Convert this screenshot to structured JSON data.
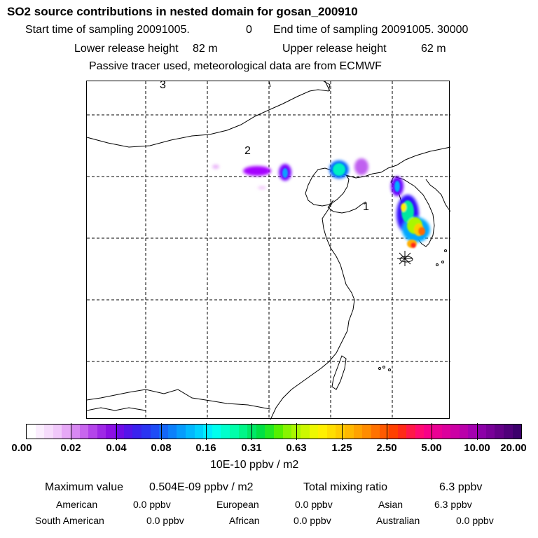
{
  "title": "SO2 source contributions in nested domain for gosan_200910",
  "header": {
    "start_label": "Start time of sampling 20091005.",
    "start_value": "0",
    "end_label": "End time of sampling 20091005. 30000",
    "lower_label": "Lower release height",
    "lower_value": "82 m",
    "upper_label": "Upper release height",
    "upper_value": "62 m",
    "note": "Passive tracer used, meteorological data are from ECMWF"
  },
  "map": {
    "region_labels": [
      "1",
      "2",
      "3"
    ],
    "receptor_marker": "asterisk-marker"
  },
  "colorbar": {
    "tick_labels": [
      "0.00",
      "0.02",
      "0.04",
      "0.08",
      "0.16",
      "0.31",
      "0.63",
      "1.25",
      "2.50",
      "5.00",
      "10.00",
      "20.00"
    ],
    "unit": "10E-10 ppbv / m2",
    "colors": [
      "#ffffff",
      "#fbeefe",
      "#f6dcfc",
      "#f0c8fa",
      "#e6a8f6",
      "#d888f2",
      "#c866ee",
      "#b444ea",
      "#9f28e6",
      "#8c10e3",
      "#6f0ce6",
      "#5414ea",
      "#3a22ee",
      "#2a34f2",
      "#1e4cf6",
      "#1466f8",
      "#0c80fa",
      "#069cfc",
      "#02b8fe",
      "#00d2ff",
      "#00ecff",
      "#00ffee",
      "#00ffcc",
      "#00ffaa",
      "#00f688",
      "#00e866",
      "#00e044",
      "#22e822",
      "#55f000",
      "#88f400",
      "#aaf600",
      "#ccf800",
      "#eef800",
      "#fff000",
      "#ffde00",
      "#ffcc00",
      "#ffb800",
      "#ffa200",
      "#ff8c00",
      "#ff7200",
      "#ff5a00",
      "#ff4000",
      "#ff2a18",
      "#ff1848",
      "#ff0a72",
      "#f80088",
      "#ea0094",
      "#dc009c",
      "#cc00a4",
      "#ba00aa",
      "#a400b0",
      "#8c00a8",
      "#780098",
      "#640088",
      "#50007a",
      "#3c006c"
    ]
  },
  "stats": {
    "max_label": "Maximum value",
    "max_value": "0.504E-09 ppbv / m2",
    "total_label": "Total mixing ratio",
    "total_value": "6.3 ppbv",
    "sources": [
      {
        "name": "American",
        "value": "0.0 ppbv"
      },
      {
        "name": "European",
        "value": "0.0 ppbv"
      },
      {
        "name": "Asian",
        "value": "6.3 ppbv"
      },
      {
        "name": "South American",
        "value": "0.0 ppbv"
      },
      {
        "name": "African",
        "value": "0.0 ppbv"
      },
      {
        "name": "Australian",
        "value": "0.0 ppbv"
      }
    ]
  }
}
